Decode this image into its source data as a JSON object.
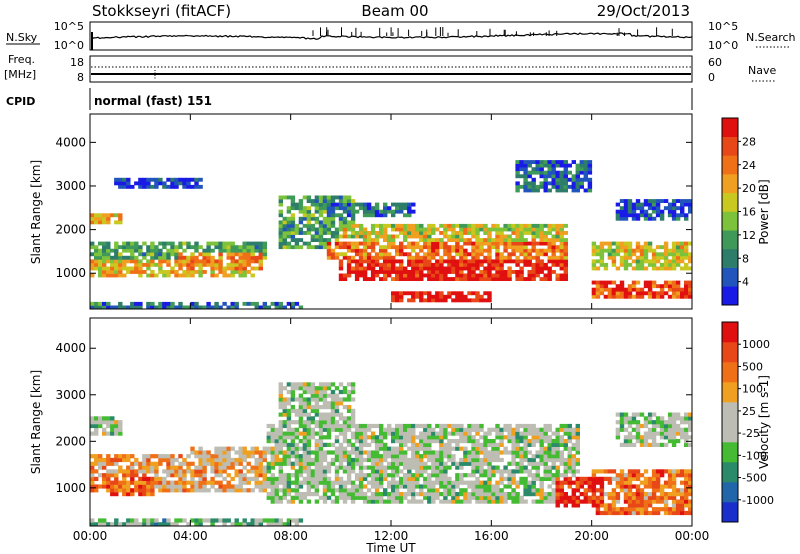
{
  "header": {
    "station": "Stokkseyri (fitACF)",
    "beam": "Beam 00",
    "date": "29/Oct/2013"
  },
  "top_panels": {
    "nsky_label": "N.Sky",
    "nsearch_label": "N.Search",
    "freq_label_1": "Freq.",
    "freq_label_2": "[MHz]",
    "nave_label": "Nave",
    "cpid_label": "CPID",
    "cpid_value": "normal (fast) 151",
    "noise_ticks_left": [
      "10^5",
      "10^0"
    ],
    "noise_ticks_right": [
      "10^5",
      "10^0"
    ],
    "freq_ticks": [
      "18",
      "8"
    ],
    "nave_ticks": [
      "60",
      "0"
    ]
  },
  "chart_data": [
    {
      "type": "heatmap",
      "title": "",
      "xlabel": "Time UT",
      "ylabel": "Slant Range [km]",
      "x_ticks": [
        "00:00",
        "04:00",
        "08:00",
        "12:00",
        "16:00",
        "20:00",
        "00:00"
      ],
      "y_ticks": [
        1000,
        2000,
        3000,
        4000
      ],
      "xlim_hours": [
        0,
        24
      ],
      "ylim_km": [
        180,
        4650
      ],
      "colorbar": {
        "label": "Power [dB]",
        "ticks": [
          "28",
          "24",
          "20",
          "16",
          "12",
          "8",
          "4"
        ],
        "colors": [
          "#1a1ae6",
          "#2255bb",
          "#2e7d6a",
          "#3f9a5a",
          "#7cc23a",
          "#c8c820",
          "#f0a020",
          "#f07018",
          "#e84818",
          "#e01010"
        ]
      },
      "blobs": [
        {
          "t": [
            0.0,
            1.2
          ],
          "r": [
            2100,
            2400
          ],
          "v": 0.65
        },
        {
          "t": [
            1.0,
            4.4
          ],
          "r": [
            2950,
            3150
          ],
          "v": 0.1
        },
        {
          "t": [
            0.0,
            7.0
          ],
          "r": [
            1300,
            1750
          ],
          "v": 0.35
        },
        {
          "t": [
            0.0,
            6.5
          ],
          "r": [
            950,
            1350
          ],
          "v": 0.6
        },
        {
          "t": [
            3.5,
            6.8
          ],
          "r": [
            1100,
            1500
          ],
          "v": 0.7
        },
        {
          "t": [
            0.0,
            8.5
          ],
          "r": [
            200,
            320
          ],
          "v": 0.25
        },
        {
          "t": [
            7.5,
            10.5
          ],
          "r": [
            1600,
            2800
          ],
          "v": 0.35
        },
        {
          "t": [
            9.5,
            13.0
          ],
          "r": [
            2300,
            2600
          ],
          "v": 0.2
        },
        {
          "t": [
            10.0,
            19.0
          ],
          "r": [
            1700,
            2100
          ],
          "v": 0.55
        },
        {
          "t": [
            9.5,
            19.0
          ],
          "r": [
            1300,
            1700
          ],
          "v": 0.75
        },
        {
          "t": [
            10.0,
            19.0
          ],
          "r": [
            800,
            1300
          ],
          "v": 0.95
        },
        {
          "t": [
            12.0,
            16.0
          ],
          "r": [
            350,
            550
          ],
          "v": 0.98
        },
        {
          "t": [
            20.0,
            24.0
          ],
          "r": [
            1100,
            1700
          ],
          "v": 0.55
        },
        {
          "t": [
            21.0,
            24.0
          ],
          "r": [
            2200,
            2700
          ],
          "v": 0.15
        },
        {
          "t": [
            20.0,
            24.0
          ],
          "r": [
            400,
            800
          ],
          "v": 0.85
        },
        {
          "t": [
            17.0,
            20.0
          ],
          "r": [
            2900,
            3600
          ],
          "v": 0.2
        }
      ]
    },
    {
      "type": "heatmap",
      "title": "",
      "xlabel": "Time UT",
      "ylabel": "Slant Range [km]",
      "x_ticks": [
        "00:00",
        "04:00",
        "08:00",
        "12:00",
        "16:00",
        "20:00",
        "00:00"
      ],
      "y_ticks": [
        1000,
        2000,
        3000,
        4000
      ],
      "xlim_hours": [
        0,
        24
      ],
      "ylim_km": [
        180,
        4650
      ],
      "colorbar": {
        "label": "Velocity [m s-1]",
        "ticks": [
          "1000",
          "500",
          "100",
          "25",
          "-25",
          "-100",
          "-500",
          "-1000"
        ],
        "colors": [
          "#1a2ecc",
          "#2266aa",
          "#2a8a6a",
          "#44bb33",
          "#bdbdb4",
          "#bdbdb4",
          "#f0a020",
          "#f07018",
          "#e84818",
          "#e01010"
        ]
      },
      "blobs": [
        {
          "t": [
            0.0,
            1.2
          ],
          "r": [
            2100,
            2500
          ],
          "v": 0.45
        },
        {
          "t": [
            0.0,
            7.0
          ],
          "r": [
            950,
            1750
          ],
          "v": 0.65
        },
        {
          "t": [
            0.5,
            2.5
          ],
          "r": [
            850,
            1300
          ],
          "v": 0.8
        },
        {
          "t": [
            4.0,
            7.0
          ],
          "r": [
            1400,
            1900
          ],
          "v": 0.6
        },
        {
          "t": [
            0.0,
            8.5
          ],
          "r": [
            200,
            320
          ],
          "v": 0.35
        },
        {
          "t": [
            7.0,
            19.5
          ],
          "r": [
            650,
            2400
          ],
          "v": 0.45
        },
        {
          "t": [
            7.5,
            10.5
          ],
          "r": [
            2400,
            3300
          ],
          "v": 0.45
        },
        {
          "t": [
            20.0,
            24.0
          ],
          "r": [
            400,
            1400
          ],
          "v": 0.75
        },
        {
          "t": [
            21.0,
            24.0
          ],
          "r": [
            1900,
            2600
          ],
          "v": 0.45
        },
        {
          "t": [
            18.5,
            20.5
          ],
          "r": [
            600,
            1200
          ],
          "v": 0.9
        }
      ]
    }
  ]
}
